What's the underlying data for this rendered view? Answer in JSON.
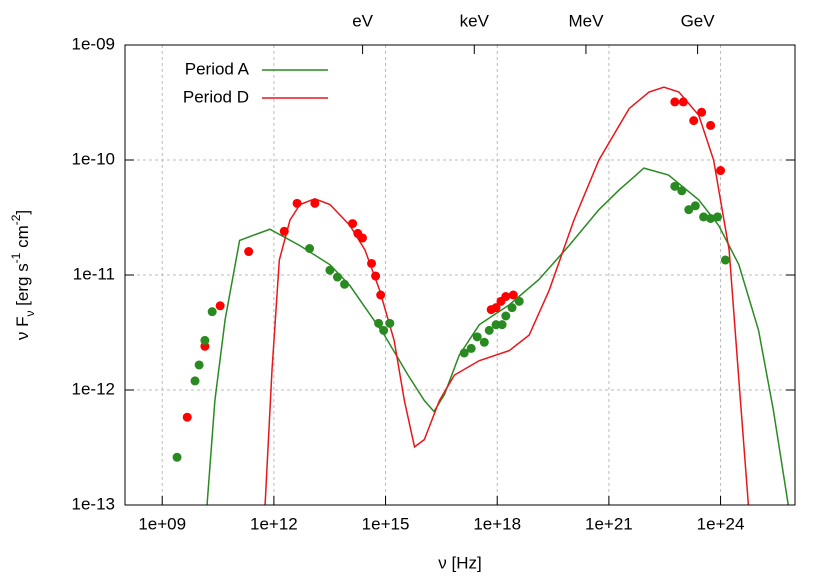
{
  "chart_data": {
    "type": "scatter",
    "xlabel": "ν [Hz]",
    "ylabel": [
      "ν F",
      "ν",
      " [erg s",
      "-1",
      " cm",
      "-2",
      "]"
    ],
    "xlog": true,
    "ylog": true,
    "grid": true,
    "legend": "top-left",
    "xlim": [
      100000000.0,
      1e+26
    ],
    "ylim": [
      1e-13,
      1e-09
    ],
    "xticks": [
      {
        "value": 1000000000.0,
        "label": "1e+09"
      },
      {
        "value": 1000000000000.0,
        "label": "1e+12"
      },
      {
        "value": 1000000000000000.0,
        "label": "1e+15"
      },
      {
        "value": 1e+18,
        "label": "1e+18"
      },
      {
        "value": 1e+21,
        "label": "1e+21"
      },
      {
        "value": 1e+24,
        "label": "1e+24"
      }
    ],
    "x2ticks": [
      {
        "value": 241800000000000.0,
        "label": "eV"
      },
      {
        "value": 2.418e+17,
        "label": "keV"
      },
      {
        "value": 2.418e+20,
        "label": "MeV"
      },
      {
        "value": 2.418e+23,
        "label": "GeV"
      }
    ],
    "yticks": [
      {
        "value": 1e-13,
        "label": "1e-13"
      },
      {
        "value": 1e-12,
        "label": "1e-12"
      },
      {
        "value": 1e-11,
        "label": "1e-11"
      },
      {
        "value": 1e-10,
        "label": "1e-10"
      },
      {
        "value": 1e-09,
        "label": "1e-09"
      }
    ],
    "series": [
      {
        "name": "Period A",
        "color": "#2a8a22",
        "x": [
          16000000000.0,
          26000000000.0,
          49000000000.0,
          120000000000.0,
          780000000000.0,
          5000000000000.0,
          32000000000000.0,
          110000000000000.0,
          930000000000000.0,
          4000000000000000.0,
          1.1e+16,
          2e+16,
          3.8e+16,
          9.5e+16,
          3.3e+17,
          2.1e+18,
          1.3e+19,
          8.5e+19,
          5.4e+20,
          1.9e+21,
          8.7e+21,
          4e+22,
          2.6e+23,
          8.9e+23,
          3.1e+24,
          1.05e+25,
          2.6e+25,
          6.6e+25
        ],
        "values": [
          1e-13,
          8.1e-13,
          4.1e-12,
          2e-11,
          2.5e-11,
          1.8e-11,
          1.23e-11,
          8.1e-12,
          3e-12,
          1.35e-12,
          8.1e-13,
          6.5e-13,
          9.1e-13,
          2e-12,
          3.7e-12,
          5.5e-12,
          9.1e-12,
          1.8e-11,
          3.7e-11,
          5.5e-11,
          8.5e-11,
          7.4e-11,
          4.5e-11,
          2.7e-11,
          1.23e-11,
          3.3e-12,
          6.8e-13,
          1e-13
        ]
      },
      {
        "name": "Period D",
        "color": "#e8161a",
        "x": [
          580000000000.0,
          890000000000.0,
          1400000000000.0,
          2700000000000.0,
          5000000000000.0,
          12600000000000.0,
          32000000000000.0,
          110000000000000.0,
          280000000000000.0,
          690000000000000.0,
          1700000000000000.0,
          3200000000000000.0,
          6000000000000000.0,
          1.1e+16,
          2.8e+16,
          7.1e+16,
          3.3e+17,
          2.1e+18,
          7.2e+18,
          2.5e+19,
          1.15e+20,
          5.4e+20,
          3.5e+21,
          1.2e+22,
          3e+22,
          7.6e+22,
          2.6e+23,
          6.5e+23,
          1.7e+24,
          3.1e+24,
          5.6e+24
        ],
        "values": [
          1e-13,
          1.5e-12,
          1.35e-11,
          3e-11,
          4.1e-11,
          4.6e-11,
          4.1e-11,
          2.7e-11,
          1.65e-11,
          7.4e-12,
          2.7e-12,
          8.1e-13,
          3.2e-13,
          3.7e-13,
          8.1e-13,
          1.35e-12,
          1.8e-12,
          2.2e-12,
          3e-12,
          7.4e-12,
          3e-11,
          1e-10,
          2.8e-10,
          3.9e-10,
          4.3e-10,
          3.9e-10,
          2.45e-10,
          1e-10,
          1.65e-11,
          1.23e-12,
          1e-13
        ]
      }
    ],
    "points": [
      {
        "color": "#ff0000",
        "x": [
          4700000000.0,
          14000000000.0,
          36000000000.0,
          210000000000.0,
          1900000000000.0,
          4200000000000.0,
          12600000000000.0,
          130000000000000.0,
          180000000000000.0,
          240000000000000.0,
          420000000000000.0,
          540000000000000.0,
          740000000000000.0,
          6.9e+17,
          9.3e+17,
          1.26e+18,
          1.7e+18,
          2.7e+18,
          5.9e+22,
          1e+23,
          1.9e+23,
          3.1e+23,
          5.4e+23,
          1e+24
        ],
        "values": [
          5.8e-13,
          2.4e-12,
          5.4e-12,
          1.6e-11,
          2.4e-11,
          4.2e-11,
          4.2e-11,
          2.8e-11,
          2.3e-11,
          2.1e-11,
          1.26e-11,
          9.8e-12,
          6.7e-12,
          5e-12,
          5.2e-12,
          5.9e-12,
          6.5e-12,
          6.7e-12,
          3.2e-10,
          3.2e-10,
          2.2e-10,
          2.6e-10,
          2e-10,
          8.1e-11
        ]
      },
      {
        "color": "#2a8a22",
        "x": [
          2500000000.0,
          7600000000.0,
          9800000000.0,
          14000000000.0,
          22000000000.0,
          9100000000000.0,
          32000000000000.0,
          51000000000000.0,
          79000000000000.0,
          650000000000000.0,
          890000000000000.0,
          1300000000000000.0,
          1.3e+17,
          2e+17,
          2.9e+17,
          4.5e+17,
          6.1e+17,
          9.3e+17,
          1.35e+18,
          1.7e+18,
          2.5e+18,
          3.9e+18,
          5.9e+22,
          9.1e+22,
          1.4e+23,
          2.1e+23,
          3.5e+23,
          5.4e+23,
          8.3e+23,
          1.35e+24
        ],
        "values": [
          2.6e-13,
          1.2e-12,
          1.65e-12,
          2.7e-12,
          4.8e-12,
          1.7e-11,
          1.1e-11,
          9.6e-12,
          8.3e-12,
          3.8e-12,
          3.3e-12,
          3.8e-12,
          2.1e-12,
          2.3e-12,
          2.9e-12,
          2.6e-12,
          3.3e-12,
          3.7e-12,
          3.7e-12,
          4.4e-12,
          5.2e-12,
          5.9e-12,
          5.9e-11,
          5.4e-11,
          3.7e-11,
          4e-11,
          3.2e-11,
          3.1e-11,
          3.2e-11,
          1.35e-11
        ]
      }
    ]
  }
}
